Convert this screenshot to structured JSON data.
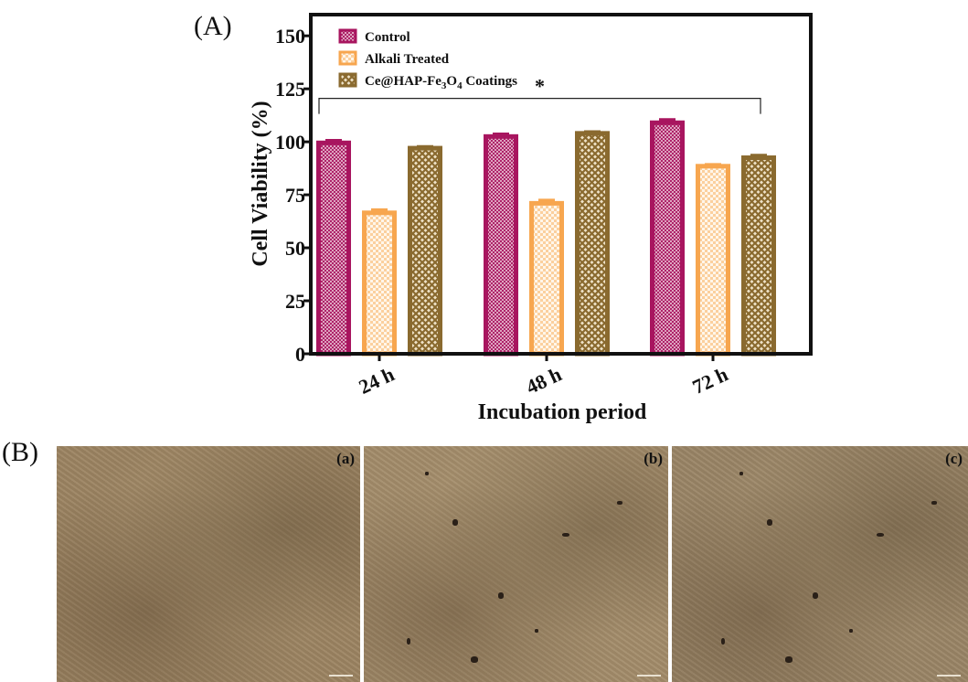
{
  "panel_labels": {
    "a": "(A)",
    "b": "(B)"
  },
  "chart_data": {
    "type": "bar",
    "categories": [
      "24 h",
      "48 h",
      "72 h"
    ],
    "series": [
      {
        "name": "Control",
        "values": [
          99.5,
          102.5,
          109
        ],
        "errors": [
          1.2,
          1.2,
          1.5
        ],
        "color": "#a8155f",
        "pattern": "fine-crosshatch"
      },
      {
        "name": "Alkali Treated",
        "values": [
          66.5,
          71,
          88.5
        ],
        "errors": [
          1.5,
          1.5,
          0.8
        ],
        "color": "#f7a64f",
        "pattern": "checker"
      },
      {
        "name": "Ce@HAP-Fe3O4 Coatings",
        "values": [
          97,
          104,
          92.5
        ],
        "errors": [
          0.8,
          0.8,
          1.2
        ],
        "color": "#8a6a2f",
        "pattern": "coarse-crosshatch"
      }
    ],
    "xlabel": "Incubation period",
    "ylabel": "Cell Viability  (%)",
    "ylim": [
      0,
      160
    ],
    "yticks": [
      0,
      25,
      50,
      75,
      100,
      125,
      150
    ],
    "legend_position": "top-left",
    "significance": {
      "from_category": "24 h",
      "to_category": "72 h",
      "label": "*"
    },
    "grid": false
  },
  "legend_parts": {
    "item3_prefix": "Ce@HAP-Fe",
    "item3_sub1": "3",
    "item3_mid": "O",
    "item3_sub2": "4",
    "item3_suffix": " Coatings"
  },
  "micrographs": [
    {
      "label": "(a)",
      "tone": "#9c8462"
    },
    {
      "label": "(b)",
      "tone": "#a38c6a"
    },
    {
      "label": "(c)",
      "tone": "#9a8566"
    }
  ],
  "colors": {
    "axis": "#111111",
    "background": "#ffffff"
  }
}
